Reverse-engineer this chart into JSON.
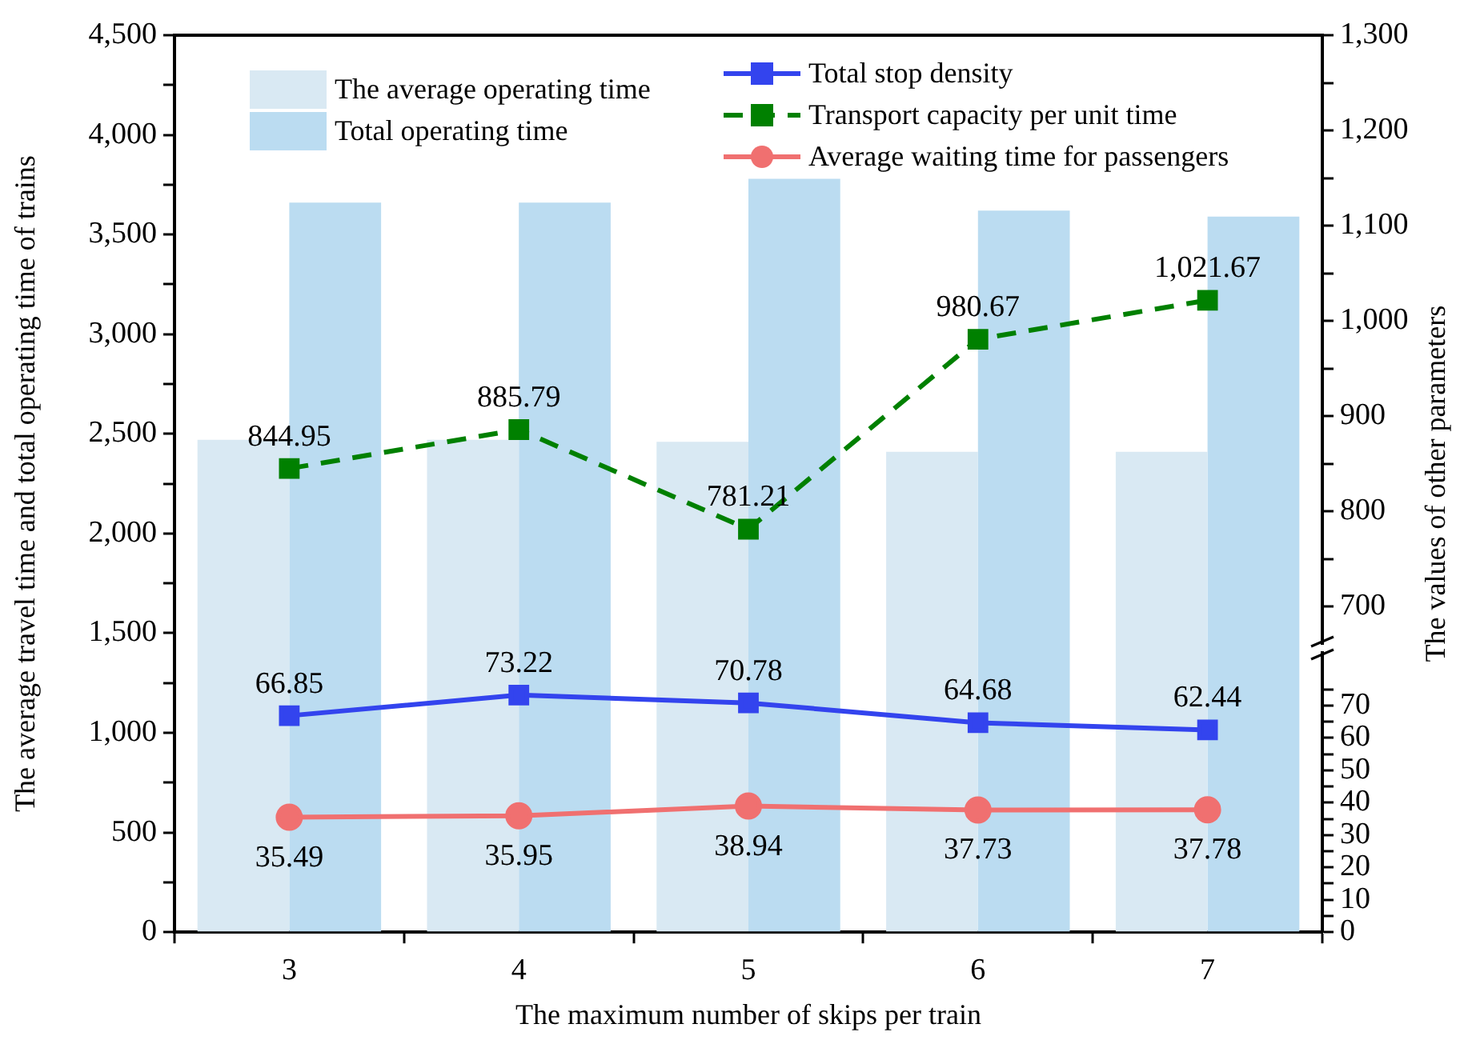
{
  "chart_data": {
    "type": "bar",
    "xlabel": "The maximum number of skips per train",
    "ylabel": "The average travel time and total operating time of trains",
    "y2label": "The values of other parameters",
    "categories": [
      "3",
      "4",
      "5",
      "6",
      "7"
    ],
    "series": [
      {
        "name": "The average operating time",
        "color": "#d9e9f3",
        "values": [
          2470,
          2470,
          2460,
          2410,
          2410
        ]
      },
      {
        "name": "Total operating time",
        "color": "#bbdcf1",
        "values": [
          3660,
          3660,
          3780,
          3620,
          3590
        ]
      },
      {
        "name": "Total stop density",
        "type": "line",
        "axis": "y2",
        "color": "#3344ee",
        "marker": "square",
        "line_style": "solid",
        "values": [
          66.85,
          73.22,
          70.78,
          64.68,
          62.44
        ],
        "value_labels": [
          "66.85",
          "73.22",
          "70.78",
          "64.68",
          "62.44"
        ]
      },
      {
        "name": "Transport capacity per unit time",
        "type": "line",
        "axis": "y3",
        "color": "#008000",
        "marker": "square",
        "line_style": "dashed",
        "values": [
          844.95,
          885.79,
          781.21,
          980.67,
          1021.67
        ],
        "value_labels": [
          "844.95",
          "885.79",
          "781.21",
          "980.67",
          "1,021.67"
        ]
      },
      {
        "name": "Average waiting time for passengers",
        "type": "line",
        "axis": "y2",
        "color": "#f07070",
        "marker": "circle",
        "line_style": "solid",
        "values": [
          35.49,
          35.95,
          38.94,
          37.73,
          37.78
        ],
        "value_labels": [
          "35.49",
          "35.95",
          "38.94",
          "37.73",
          "37.78"
        ]
      }
    ],
    "ylim": [
      0,
      4500
    ],
    "yticks": [
      0,
      {
        "value": 250,
        "label": null
      },
      500,
      {
        "value": 750,
        "label": null
      },
      {
        "value": 1000,
        "label": "1,000"
      },
      {
        "value": 1250,
        "label": null
      },
      {
        "value": 1500,
        "label": "1,500"
      },
      {
        "value": 1750,
        "label": null
      },
      {
        "value": 2000,
        "label": "2,000"
      },
      {
        "value": 2250,
        "label": null
      },
      {
        "value": 2500,
        "label": "2,500"
      },
      {
        "value": 2750,
        "label": null
      },
      {
        "value": 3000,
        "label": "3,000"
      },
      {
        "value": 3250,
        "label": null
      },
      {
        "value": 3500,
        "label": "3,500"
      },
      {
        "value": 3750,
        "label": null
      },
      {
        "value": 4000,
        "label": "4,000"
      },
      {
        "value": 4250,
        "label": null
      },
      {
        "value": 4500,
        "label": "4,500"
      }
    ],
    "y2lim": [
      0,
      277
    ],
    "y2ticks": [
      0,
      {
        "value": 5,
        "label": null
      },
      10,
      {
        "value": 15,
        "label": null
      },
      20,
      {
        "value": 25,
        "label": null
      },
      30,
      {
        "value": 35,
        "label": null
      },
      40,
      {
        "value": 45,
        "label": null
      },
      50,
      {
        "value": 55,
        "label": null
      },
      60,
      {
        "value": 65,
        "label": null
      },
      70,
      {
        "value": 75,
        "label": null
      }
    ],
    "y3lim": [
      358,
      1300
    ],
    "y3ticks": [
      700,
      {
        "value": 750,
        "label": null
      },
      800,
      {
        "value": 850,
        "label": null
      },
      900,
      {
        "value": 950,
        "label": null
      },
      {
        "value": 1000,
        "label": "1,000"
      },
      {
        "value": 1050,
        "label": null
      },
      {
        "value": 1100,
        "label": "1,100"
      },
      {
        "value": 1150,
        "label": null
      },
      {
        "value": 1200,
        "label": "1,200"
      },
      {
        "value": 1250,
        "label": null
      },
      {
        "value": 1300,
        "label": "1,300"
      }
    ],
    "grid": false,
    "legend": "top"
  }
}
